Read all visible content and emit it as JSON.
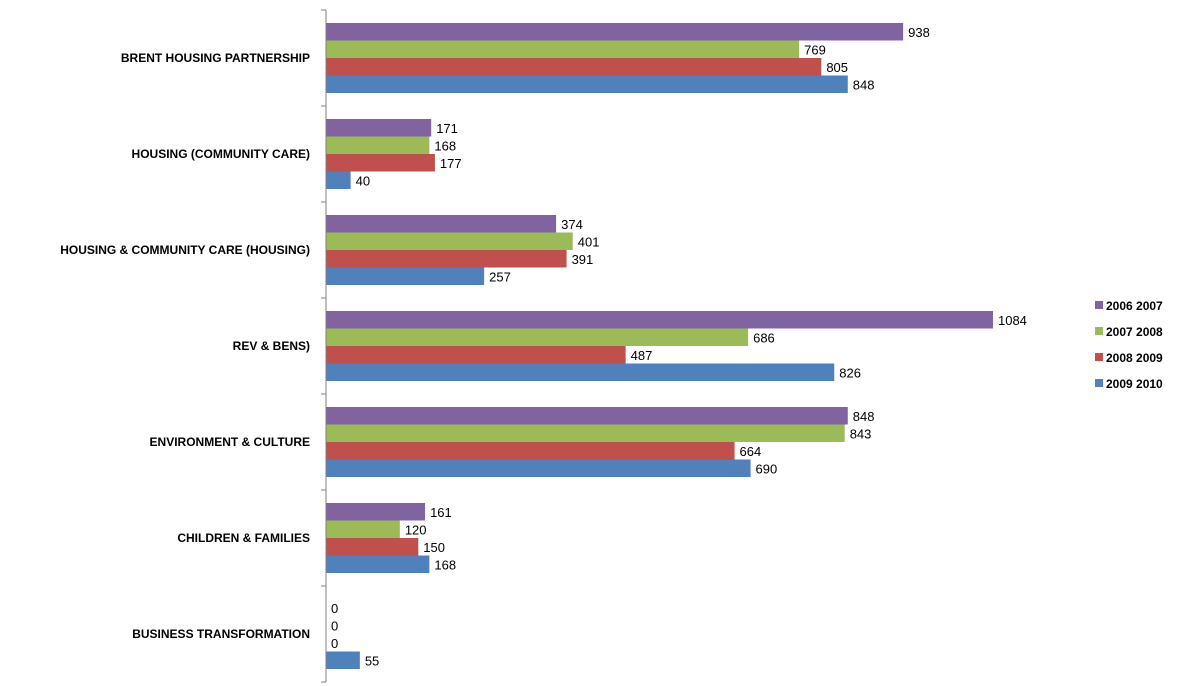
{
  "chart_data": {
    "type": "bar",
    "orientation": "horizontal",
    "title": "",
    "xlabel": "",
    "ylabel": "",
    "xlim": [
      0,
      1100
    ],
    "grid": false,
    "legend_position": "right",
    "categories": [
      "BRENT HOUSING PARTNERSHIP",
      "HOUSING (COMMUNITY CARE)",
      "HOUSING & COMMUNITY CARE (HOUSING)",
      "REV & BENS)",
      "ENVIRONMENT & CULTURE",
      "CHILDREN & FAMILIES",
      "BUSINESS TRANSFORMATION"
    ],
    "series": [
      {
        "name": "2006 2007",
        "color": "#8064A2",
        "values": [
          938,
          171,
          374,
          1084,
          848,
          161,
          0
        ]
      },
      {
        "name": "2007 2008",
        "color": "#9BBB59",
        "values": [
          769,
          168,
          401,
          686,
          843,
          120,
          0
        ]
      },
      {
        "name": "2008 2009",
        "color": "#C0504D",
        "values": [
          805,
          177,
          391,
          487,
          664,
          150,
          0
        ]
      },
      {
        "name": "2009 2010",
        "color": "#4F81BD",
        "values": [
          848,
          40,
          257,
          826,
          690,
          168,
          55
        ]
      }
    ]
  }
}
